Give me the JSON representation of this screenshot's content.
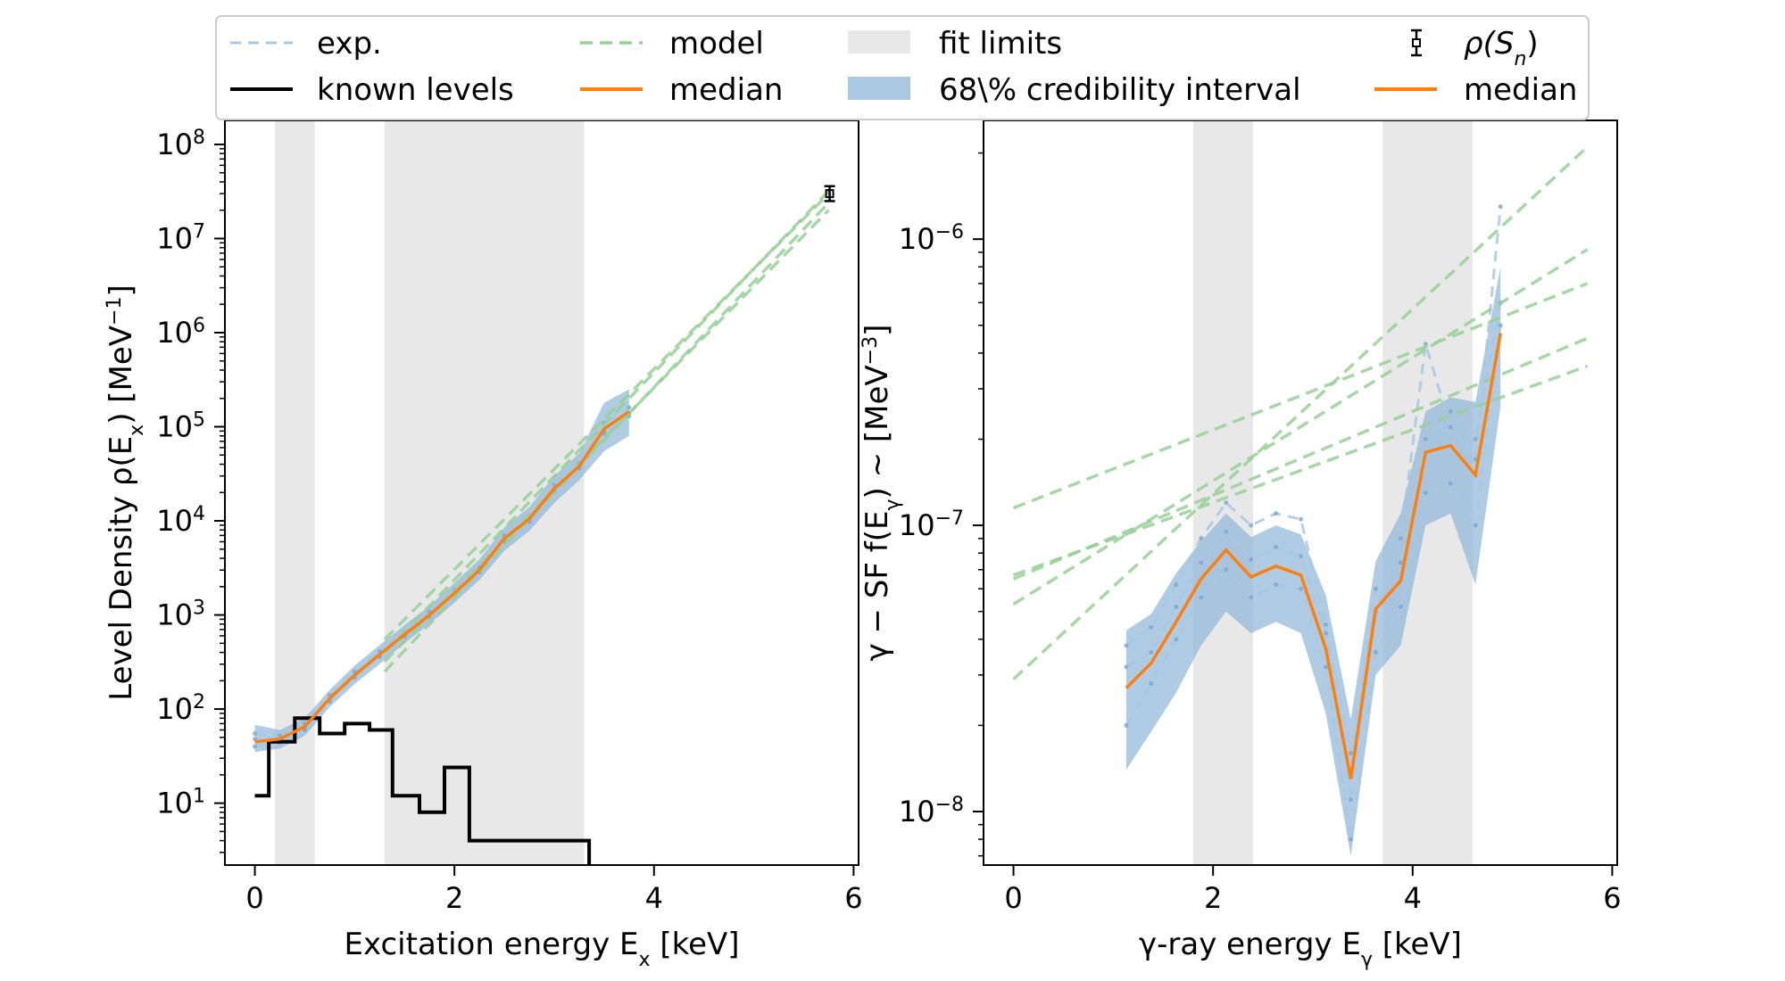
{
  "legend": {
    "items": [
      {
        "label": "exp.",
        "kind": "exp"
      },
      {
        "label": "known levels",
        "kind": "known"
      },
      {
        "label": "model",
        "kind": "model"
      },
      {
        "label": "median",
        "kind": "median"
      },
      {
        "label": "fit limits",
        "kind": "fitlimits"
      },
      {
        "label": "68\\% credibility interval",
        "kind": "band"
      },
      {
        "label": "ρ(S",
        "sub": "n",
        "close": ")",
        "kind": "errorbar"
      },
      {
        "label": "median",
        "kind": "median"
      }
    ]
  },
  "colors": {
    "exp": "#a8c8e0",
    "model": "#98d098",
    "median": "#ff7f0e",
    "band": "#8fb5d9",
    "fitlimits": "#e8e8e8",
    "known": "#000000"
  },
  "chart_data": [
    {
      "type": "line",
      "xlabel": "Excitation energy E",
      "xlabel_sub": "x",
      "xlabel_unit": " [keV]",
      "ylabel": "Level Density ρ(E",
      "ylabel_sub": "x",
      "ylabel_unit": ") [MeV",
      "ylabel_sup": "−1",
      "ylabel_close": "]",
      "yscale": "log",
      "xlim": [
        -0.3,
        6.05
      ],
      "ylim": [
        2.2,
        180000000
      ],
      "xticks": [
        0,
        2,
        4,
        6
      ],
      "yticks": [
        {
          "base": "10",
          "exp": "1",
          "v": 10
        },
        {
          "base": "10",
          "exp": "2",
          "v": 100
        },
        {
          "base": "10",
          "exp": "3",
          "v": 1000
        },
        {
          "base": "10",
          "exp": "4",
          "v": 10000
        },
        {
          "base": "10",
          "exp": "5",
          "v": 100000
        },
        {
          "base": "10",
          "exp": "6",
          "v": 1000000
        },
        {
          "base": "10",
          "exp": "7",
          "v": 10000000
        },
        {
          "base": "10",
          "exp": "8",
          "v": 100000000
        }
      ],
      "fit_limits": [
        [
          0.2,
          0.6
        ],
        [
          1.3,
          3.3
        ]
      ],
      "median": {
        "x": [
          0.0,
          0.25,
          0.5,
          0.75,
          1.0,
          1.25,
          1.5,
          1.75,
          2.0,
          2.25,
          2.5,
          2.75,
          3.0,
          3.25,
          3.5,
          3.75
        ],
        "y": [
          45,
          48,
          65,
          130,
          230,
          380,
          620,
          1000,
          1700,
          3000,
          6500,
          10500,
          22000,
          38000,
          95000,
          145000
        ]
      },
      "band": {
        "x": [
          0.0,
          0.25,
          0.5,
          0.75,
          1.0,
          1.25,
          1.5,
          1.75,
          2.0,
          2.25,
          2.5,
          2.75,
          3.0,
          3.25,
          3.5,
          3.75
        ],
        "lower": [
          35,
          38,
          52,
          105,
          185,
          300,
          500,
          800,
          1350,
          2350,
          4800,
          7800,
          15500,
          27000,
          55000,
          80000
        ],
        "upper": [
          68,
          60,
          80,
          160,
          290,
          480,
          780,
          1250,
          2200,
          3900,
          8500,
          14000,
          30000,
          52000,
          180000,
          250000
        ]
      },
      "exp_series": [
        {
          "x": [
            0.0,
            0.25,
            0.5,
            0.75,
            1.0,
            1.25,
            1.5,
            1.75,
            2.0,
            2.25,
            2.5,
            2.75,
            3.0,
            3.25,
            3.5,
            3.75
          ],
          "y": [
            40,
            44,
            60,
            120,
            215,
            360,
            590,
            950,
            1600,
            2850,
            6000,
            9800,
            20500,
            36000,
            90000,
            140000
          ]
        },
        {
          "x": [
            0.0,
            0.25,
            0.5,
            0.75,
            1.0,
            1.25,
            1.5,
            1.75,
            2.0,
            2.25,
            2.5,
            2.75,
            3.0,
            3.25,
            3.5,
            3.75
          ],
          "y": [
            55,
            52,
            70,
            140,
            250,
            410,
            660,
            1080,
            1850,
            3200,
            7000,
            11500,
            24000,
            41000,
            110000,
            160000
          ]
        },
        {
          "x": [
            0.0,
            0.25,
            0.5,
            0.75,
            1.0,
            1.25,
            1.5,
            1.75,
            2.0,
            2.25,
            2.5,
            2.75,
            3.0,
            3.25,
            3.5,
            3.75
          ],
          "y": [
            48,
            46,
            62,
            125,
            225,
            370,
            600,
            980,
            1650,
            2900,
            6200,
            10000,
            21000,
            37000,
            85000,
            130000
          ]
        }
      ],
      "model_series": [
        {
          "x": [
            1.3,
            5.75
          ],
          "y": [
            400,
            32000000
          ]
        },
        {
          "x": [
            1.3,
            5.75
          ],
          "y": [
            250,
            24000000
          ]
        },
        {
          "x": [
            1.3,
            5.75
          ],
          "y": [
            550,
            30000000
          ]
        },
        {
          "x": [
            1.3,
            5.75
          ],
          "y": [
            320,
            20000000
          ]
        }
      ],
      "known_levels": {
        "x": [
          0.0,
          0.14,
          0.14,
          0.4,
          0.4,
          0.65,
          0.65,
          0.9,
          0.9,
          1.15,
          1.15,
          1.38,
          1.38,
          1.65,
          1.65,
          1.9,
          1.9,
          2.15,
          2.15,
          3.35,
          3.35
        ],
        "y": [
          12,
          12,
          45,
          45,
          80,
          80,
          55,
          55,
          70,
          70,
          60,
          60,
          12,
          12,
          8,
          8,
          24,
          24,
          4,
          4,
          2.2
        ]
      },
      "rho_sn": {
        "x": 5.76,
        "y": 30000000,
        "err_low": 25000000,
        "err_high": 36000000
      }
    },
    {
      "type": "line",
      "xlabel": "γ-ray energy E",
      "xlabel_sub": "γ",
      "xlabel_unit": " [keV]",
      "ylabel": "γ − SF f(E",
      "ylabel_sub": "γ",
      "ylabel_unit": ") ~ [MeV",
      "ylabel_sup": "−3",
      "ylabel_close": "]",
      "yscale": "log",
      "xlim": [
        -0.3,
        6.05
      ],
      "ylim": [
        6.5e-09,
        2.6e-06
      ],
      "xticks": [
        0,
        2,
        4,
        6
      ],
      "yticks": [
        {
          "base": "10",
          "exp": "−8",
          "v": 1e-08
        },
        {
          "base": "10",
          "exp": "−7",
          "v": 1e-07
        },
        {
          "base": "10",
          "exp": "−6",
          "v": 1e-06
        }
      ],
      "fit_limits": [
        [
          1.8,
          2.4
        ],
        [
          3.7,
          4.6
        ]
      ],
      "median": {
        "x": [
          1.13,
          1.38,
          1.63,
          1.88,
          2.13,
          2.38,
          2.63,
          2.88,
          3.13,
          3.38,
          3.63,
          3.88,
          4.13,
          4.38,
          4.63,
          4.88
        ],
        "y": [
          2.7e-08,
          3.3e-08,
          4.6e-08,
          6.5e-08,
          8.2e-08,
          6.6e-08,
          7.2e-08,
          6.7e-08,
          3.7e-08,
          1.3e-08,
          5.1e-08,
          6.4e-08,
          1.8e-07,
          1.9e-07,
          1.5e-07,
          4.7e-07
        ]
      },
      "band": {
        "x": [
          1.13,
          1.38,
          1.63,
          1.88,
          2.13,
          2.38,
          2.63,
          2.88,
          3.13,
          3.38,
          3.63,
          3.88,
          4.13,
          4.38,
          4.63,
          4.88
        ],
        "lower": [
          1.4e-08,
          1.9e-08,
          2.6e-08,
          3.8e-08,
          5e-08,
          4.2e-08,
          4.6e-08,
          4.2e-08,
          2.2e-08,
          7e-09,
          3e-08,
          3.8e-08,
          1e-07,
          1.1e-07,
          6.2e-08,
          2.6e-07
        ],
        "upper": [
          4.3e-08,
          4.9e-08,
          6.8e-08,
          8.8e-08,
          1.1e-07,
          9.1e-08,
          1e-07,
          9.3e-08,
          5.7e-08,
          2.1e-08,
          7.5e-08,
          1.1e-07,
          2.5e-07,
          2.8e-07,
          2.7e-07,
          8e-07
        ]
      },
      "exp_series": [
        {
          "x": [
            1.13,
            1.38,
            1.63,
            1.88,
            2.13,
            2.38,
            2.63,
            2.88,
            3.13,
            3.38,
            3.63,
            3.88,
            4.13,
            4.38,
            4.63,
            4.88
          ],
          "y": [
            3.8e-08,
            4.4e-08,
            6.2e-08,
            9e-08,
            1.2e-07,
            1e-07,
            1.1e-07,
            1.05e-07,
            4.5e-08,
            1.1e-08,
            5e-08,
            9e-08,
            4.3e-07,
            2.2e-07,
            1.7e-07,
            1.3e-06
          ]
        },
        {
          "x": [
            1.13,
            1.38,
            1.63,
            1.88,
            2.13,
            2.38,
            2.63,
            2.88,
            3.13,
            3.38,
            3.63,
            3.88,
            4.13,
            4.38,
            4.63,
            4.88
          ],
          "y": [
            2e-08,
            2.8e-08,
            4e-08,
            5.6e-08,
            7e-08,
            5.6e-08,
            6.2e-08,
            6e-08,
            3.2e-08,
            8e-09,
            3.6e-08,
            5.2e-08,
            1.3e-07,
            1.4e-07,
            1e-07,
            5e-07
          ]
        },
        {
          "x": [
            1.13,
            1.38,
            1.63,
            1.88,
            2.13,
            2.38,
            2.63,
            2.88,
            3.13,
            3.38,
            3.63,
            3.88,
            4.13,
            4.38,
            4.63,
            4.88
          ],
          "y": [
            3.2e-08,
            3.6e-08,
            5.2e-08,
            7.4e-08,
            9.5e-08,
            7.6e-08,
            8.4e-08,
            7.8e-08,
            4.2e-08,
            1.6e-08,
            6e-08,
            7.4e-08,
            2e-07,
            2.5e-07,
            2e-07,
            6e-07
          ]
        }
      ],
      "model_series": [
        {
          "x": [
            0.0,
            5.75
          ],
          "y": [
            6.7e-08,
            3.6e-07
          ]
        },
        {
          "x": [
            0.0,
            5.75
          ],
          "y": [
            1.15e-07,
            7e-07
          ]
        },
        {
          "x": [
            0.0,
            5.75
          ],
          "y": [
            5.3e-08,
            9.2e-07
          ]
        },
        {
          "x": [
            0.0,
            5.75
          ],
          "y": [
            2.9e-08,
            2.1e-06
          ]
        },
        {
          "x": [
            0.0,
            5.75
          ],
          "y": [
            6.5e-08,
            4.5e-07
          ]
        }
      ]
    }
  ]
}
